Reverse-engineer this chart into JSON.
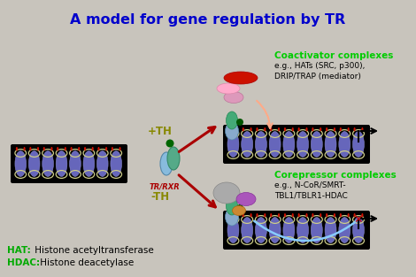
{
  "title": "A model for gene regulation by TR",
  "title_color": "#0000CC",
  "title_fontsize": 11.5,
  "bg_color": "#C8C4BC",
  "hat_label": "HAT:",
  "hat_desc": " Histone acetyltransferase",
  "hdac_label": "HDAC:",
  "hdac_desc": " Histone deacetylase",
  "label_color_green": "#00AA00",
  "label_color_black": "#000000",
  "coactivator_text": "Coactivator complexes",
  "coactivator_eg": "e.g., HATs (SRC, p300),\nDRIP/TRAP (mediator)",
  "corepressor_text": "Corepressor complexes",
  "corepressor_eg": "e.g., N-CoR/SMRT-\nTBL1/TBLR1-HDAC",
  "plus_th": "+TH",
  "minus_th": "-TH",
  "tr_rxr": "TR/RXR",
  "green_text": "#00CC00",
  "dark_red": "#AA0000",
  "olive": "#888800"
}
